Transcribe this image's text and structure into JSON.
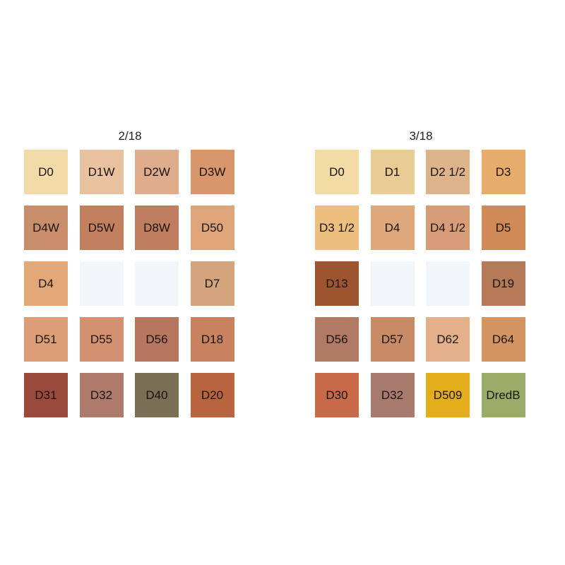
{
  "panels": [
    {
      "title": "2/18",
      "swatches": [
        {
          "label": "D0",
          "color": "#f2dba6"
        },
        {
          "label": "D1W",
          "color": "#e9c3a0"
        },
        {
          "label": "D2W",
          "color": "#e0ad8c"
        },
        {
          "label": "D3W",
          "color": "#d8966c"
        },
        {
          "label": "D4W",
          "color": "#c98f6d"
        },
        {
          "label": "D5W",
          "color": "#c3805f"
        },
        {
          "label": "D8W",
          "color": "#c07e60"
        },
        {
          "label": "D50",
          "color": "#dea47a"
        },
        {
          "label": "D4",
          "color": "#e2a877"
        },
        {
          "label": "",
          "color": "#f1f6fa"
        },
        {
          "label": "",
          "color": "#f1f6fa"
        },
        {
          "label": "D7",
          "color": "#d4a47c"
        },
        {
          "label": "D51",
          "color": "#dc9e76"
        },
        {
          "label": "D55",
          "color": "#d59272"
        },
        {
          "label": "D56",
          "color": "#b7765e"
        },
        {
          "label": "D18",
          "color": "#c98260"
        },
        {
          "label": "D31",
          "color": "#9a4a3c"
        },
        {
          "label": "D32",
          "color": "#ad7a6c"
        },
        {
          "label": "D40",
          "color": "#7a6e55"
        },
        {
          "label": "D20",
          "color": "#b8643e"
        }
      ]
    },
    {
      "title": "3/18",
      "swatches": [
        {
          "label": "D0",
          "color": "#f3dba6"
        },
        {
          "label": "D1",
          "color": "#e9cc93"
        },
        {
          "label": "D2 1/2",
          "color": "#ddb48a"
        },
        {
          "label": "D3",
          "color": "#e5ac6c"
        },
        {
          "label": "D3 1/2",
          "color": "#ecbf7e"
        },
        {
          "label": "D4",
          "color": "#dfa87c"
        },
        {
          "label": "D4 1/2",
          "color": "#d69d78"
        },
        {
          "label": "D5",
          "color": "#cf8a58"
        },
        {
          "label": "D13",
          "color": "#9e552f"
        },
        {
          "label": "",
          "color": "#f1f6fa"
        },
        {
          "label": "",
          "color": "#f1f6fa"
        },
        {
          "label": "D19",
          "color": "#b57a58"
        },
        {
          "label": "D56",
          "color": "#b07a65"
        },
        {
          "label": "D57",
          "color": "#c98a66"
        },
        {
          "label": "D62",
          "color": "#e4b08a"
        },
        {
          "label": "D64",
          "color": "#d49563"
        },
        {
          "label": "D30",
          "color": "#c76a48"
        },
        {
          "label": "D32",
          "color": "#a97a6e"
        },
        {
          "label": "D509",
          "color": "#e4ad1a"
        },
        {
          "label": "DredB",
          "color": "#9aac68"
        }
      ]
    }
  ]
}
